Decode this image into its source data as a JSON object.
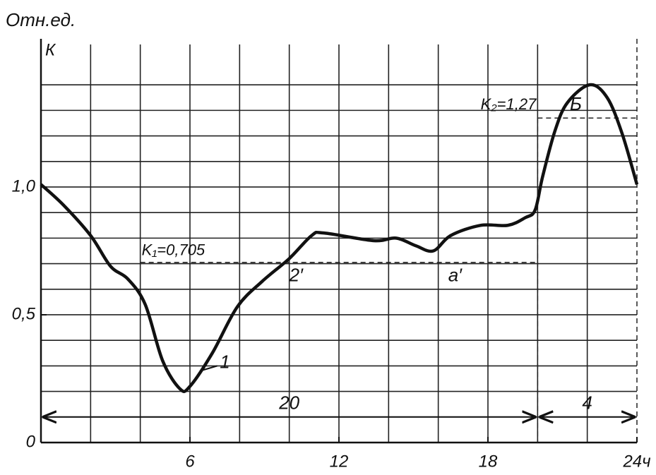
{
  "chart_data": {
    "type": "line",
    "y_axis_label": "Отн.ед.",
    "y_symbol": "К",
    "x": [
      0,
      0.9,
      2,
      2.8,
      3.5,
      4.2,
      4.9,
      5.6,
      6,
      6.9,
      7.9,
      8.9,
      10,
      10.9,
      11.4,
      13.4,
      14.3,
      15.1,
      15.8,
      16.5,
      17.7,
      18.8,
      19.5,
      19.9,
      20.2,
      20.7,
      21.2,
      22.1,
      22.8,
      23.4,
      24
    ],
    "series": [
      {
        "name": "1",
        "color": "#111111",
        "values": [
          1.01,
          0.93,
          0.81,
          0.69,
          0.64,
          0.54,
          0.32,
          0.21,
          0.22,
          0.35,
          0.53,
          0.63,
          0.72,
          0.81,
          0.82,
          0.79,
          0.8,
          0.77,
          0.75,
          0.81,
          0.85,
          0.85,
          0.88,
          0.91,
          1.04,
          1.22,
          1.33,
          1.4,
          1.35,
          1.21,
          1.01
        ]
      }
    ],
    "xlim": [
      0,
      24
    ],
    "ylim": [
      0,
      1.58
    ],
    "xticks": [
      6,
      12,
      18,
      {
        "value": 24,
        "label": "24ч"
      }
    ],
    "yticks": [
      0,
      {
        "value": 0.5,
        "label": "0,5"
      },
      {
        "value": 1,
        "label": "1,0"
      }
    ],
    "xgrid": [
      2,
      4,
      6,
      8,
      10,
      12,
      14,
      16,
      18,
      20,
      22
    ],
    "ygrid": [
      0.1,
      0.2,
      0.3,
      0.4,
      0.5,
      0.6,
      0.7,
      0.8,
      0.9,
      1,
      1.1,
      1.2,
      1.3,
      1.4
    ],
    "levels": [
      {
        "label": "K₁=0,705",
        "value": 0.705,
        "from": 4,
        "to": 20
      },
      {
        "label": "K₂=1,27",
        "value": 1.27,
        "from": 20,
        "to": 24
      }
    ],
    "spans": [
      {
        "label": "20",
        "from": 0,
        "to": 20,
        "value": 0.1
      },
      {
        "label": "4",
        "from": 20,
        "to": 24,
        "value": 0.1
      }
    ],
    "annotations": [
      "2′",
      "a′",
      "Б"
    ]
  }
}
